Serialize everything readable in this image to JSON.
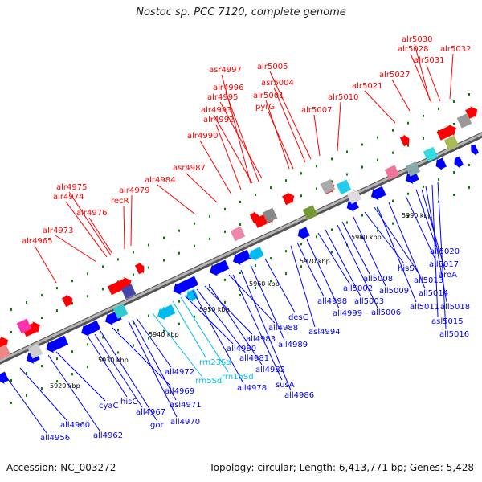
{
  "title": "Nostoc sp. PCC 7120, complete genome",
  "accession": "Accession: NC_003272",
  "summary": "Topology: circular; Length: 6,413,771 bp; Genes: 5,428",
  "colors": {
    "forward": "#ff0000",
    "reverse": "#0000ff",
    "rna": "#00bbee",
    "backbone": "#777777",
    "tick": "#008000"
  },
  "tick_labels": [
    "5920 kbp",
    "5930 kbp",
    "5940 kbp",
    "5950 kbp",
    "5960 kbp",
    "5970 kbp",
    "5980 kbp",
    "5990 kbp"
  ],
  "top_genes": [
    "alr5030",
    "alr5028",
    "alr5031",
    "alr5032",
    "alr5027",
    "alr5021",
    "alr5005",
    "asr4997",
    "asr5004",
    "alr4996",
    "alr4995",
    "alr5001",
    "alr5010",
    "alr4993",
    "pyrG",
    "alr5007",
    "alr4992",
    "alr4990",
    "asr4987",
    "alr4984",
    "alr4975",
    "alr4979",
    "alr4974",
    "recR",
    "alr4976",
    "alr4973",
    "alr4965"
  ],
  "bottom_genes": [
    "all4956",
    "all4960",
    "all4962",
    "cyaC",
    "hisC",
    "all4967",
    "gor",
    "asl4971",
    "all4970",
    "all4969",
    "all4972",
    "rrn5Sd",
    "rrn23Sd",
    "rrn16Sd",
    "all4978",
    "all4980",
    "all4981",
    "all4982",
    "all4983",
    "all4988",
    "susA",
    "all4986",
    "desC",
    "all4989",
    "asl4994",
    "all4998",
    "all4999",
    "all5002",
    "all5003",
    "all5006",
    "all5008",
    "all5009",
    "hisS",
    "all5013",
    "all5011",
    "all5014",
    "all5017",
    "all5020",
    "aroA",
    "all5018",
    "asl5015",
    "all5016"
  ]
}
